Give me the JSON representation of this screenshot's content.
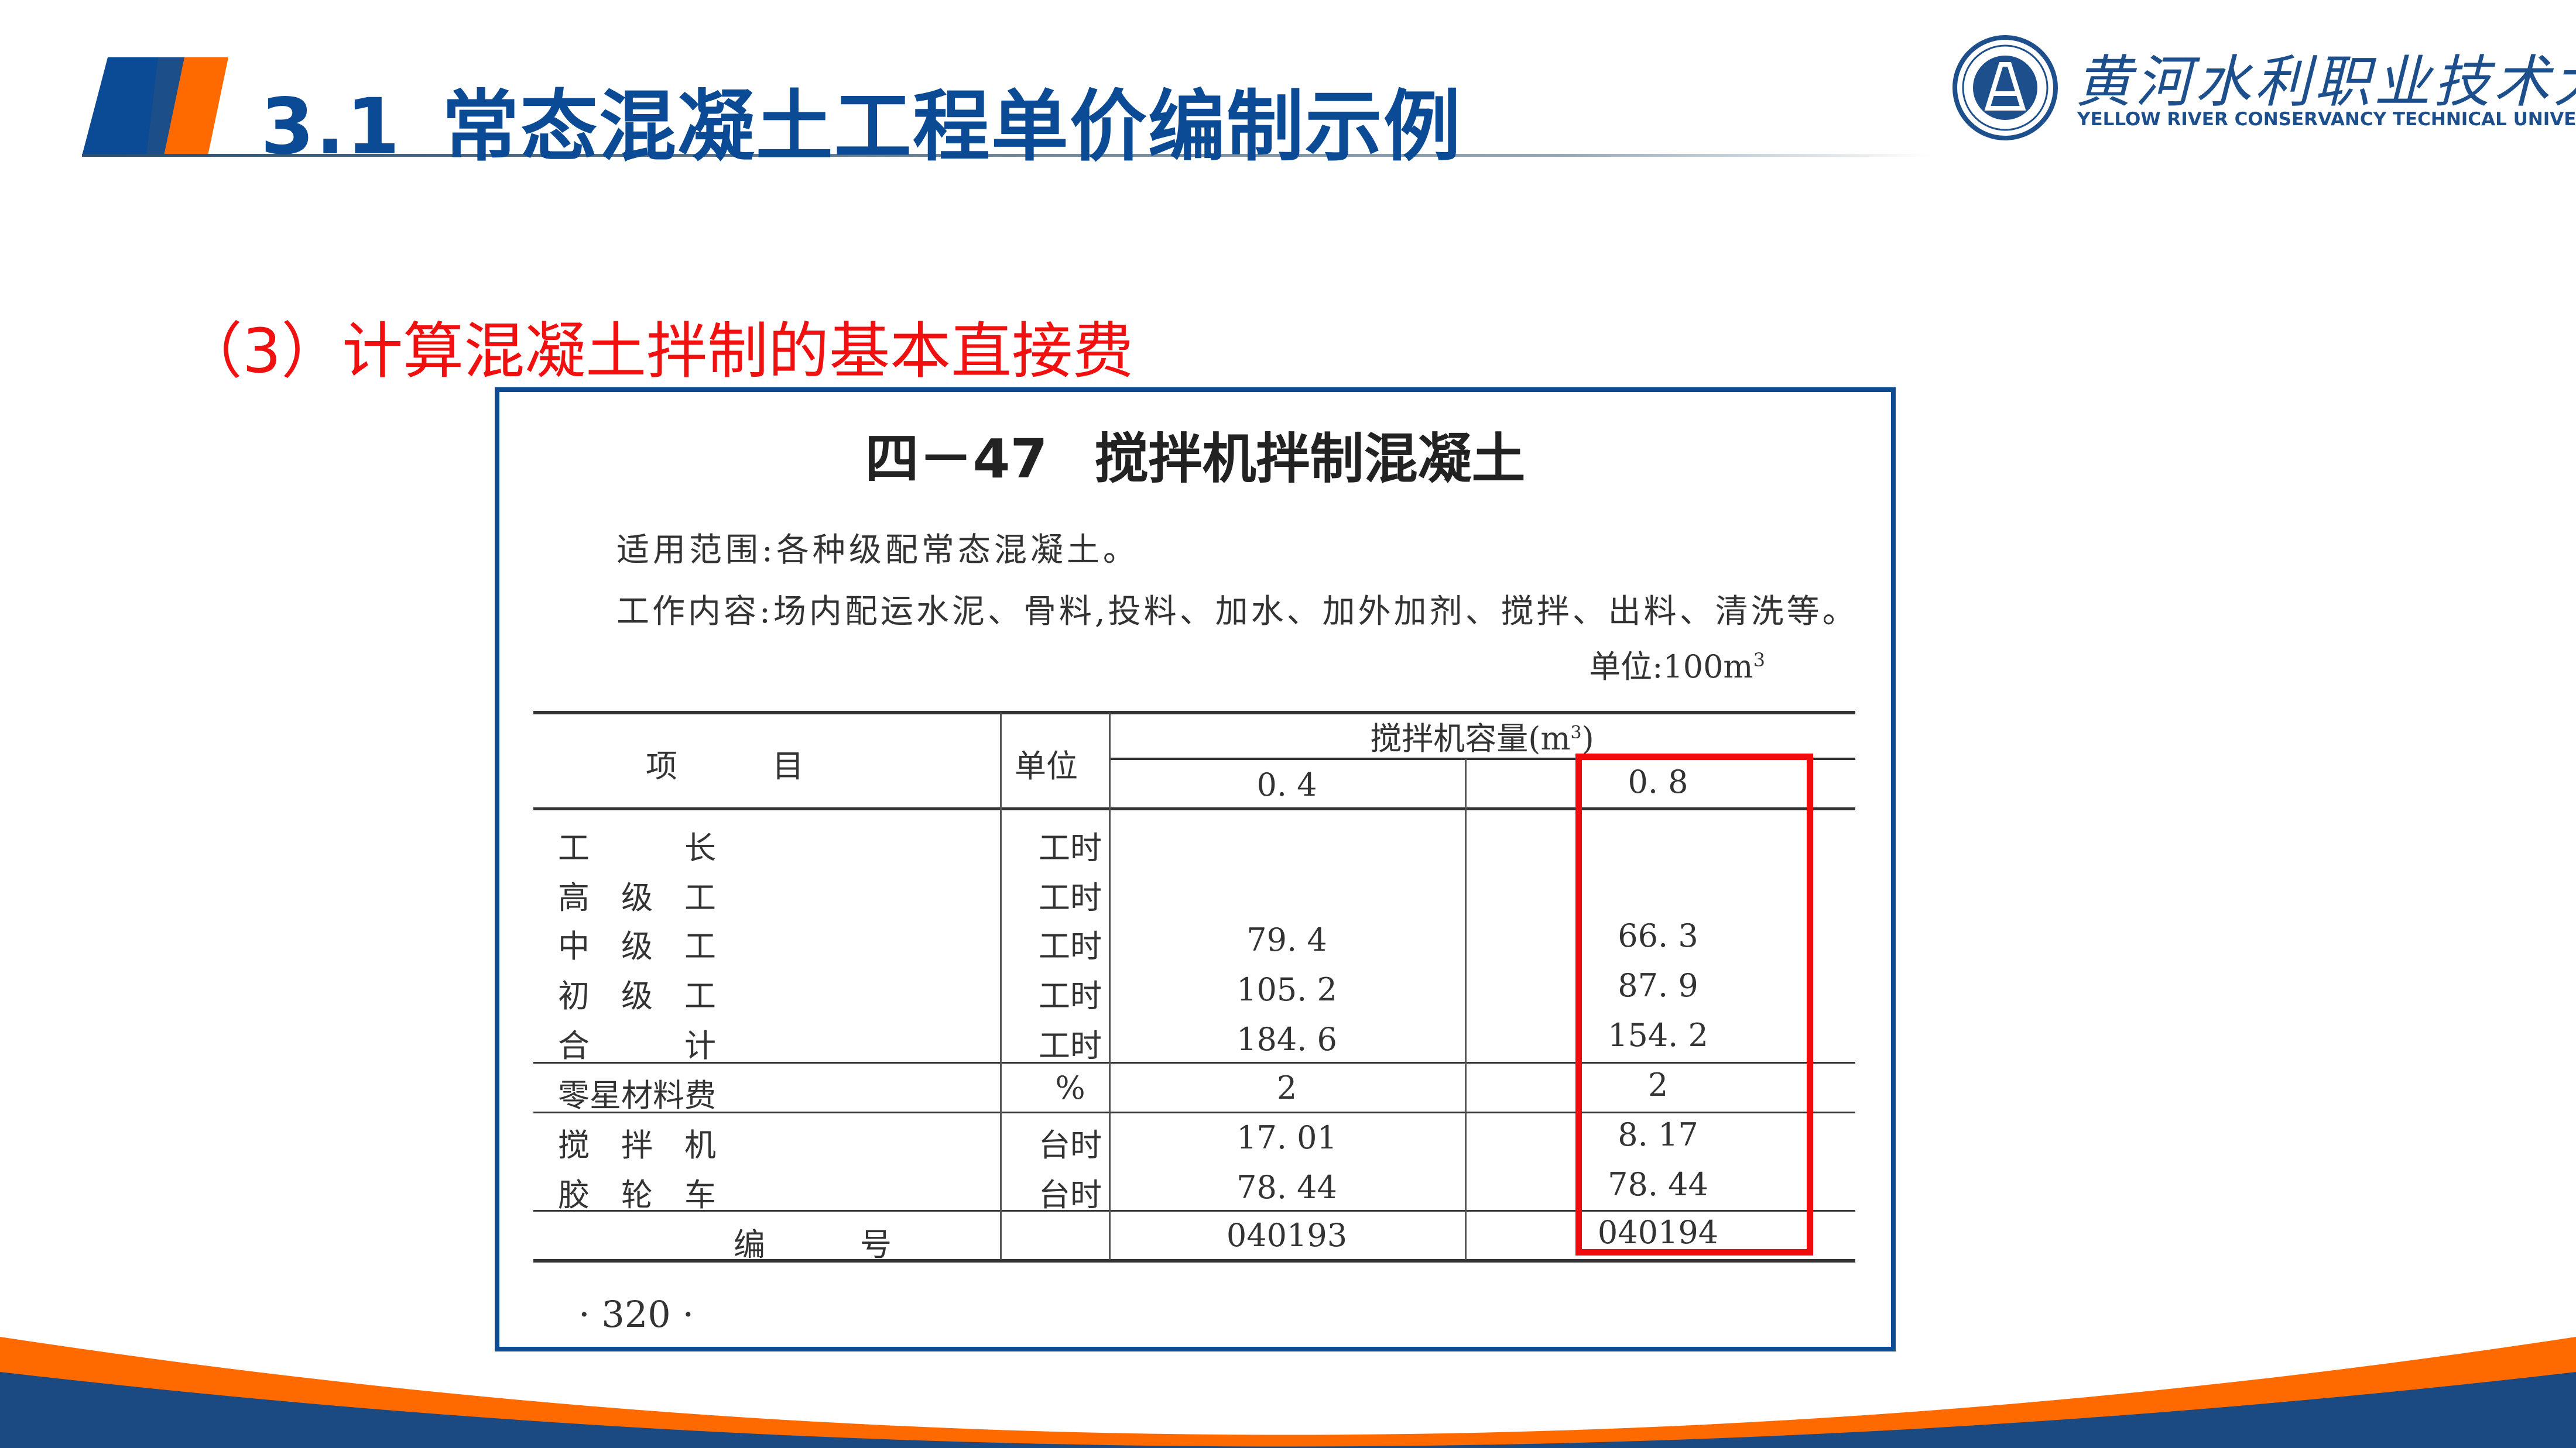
{
  "header": {
    "section_number": "3.1",
    "title": "常态混凝土工程单价编制示例",
    "colors": {
      "blue": "#0b4a94",
      "orange": "#ff6a00"
    }
  },
  "logo": {
    "name_cn": "黄河水利职业技术大学",
    "name_en": "YELLOW RIVER CONSERVANCY TECHNICAL UNIVERSITY"
  },
  "subtitle": "（3）计算混凝土拌制的基本直接费",
  "document": {
    "table_number": "四－47",
    "table_title": "搅拌机拌制混凝土",
    "scope": "适用范围:各种级配常态混凝土。",
    "work_content": "工作内容:场内配运水泥、骨料,投料、加水、加外加剂、搅拌、出料、清洗等。",
    "unit_label": "单位:100m",
    "unit_sup": "3",
    "columns": {
      "item": "项　　　目",
      "unit": "单位",
      "capacity": "搅拌机容量(m",
      "capacity_sup": "3",
      "capacity_close": ")",
      "sizes": [
        "0. 4",
        "0. 8"
      ]
    },
    "rows": [
      {
        "item": "工　　　长",
        "unit": "工时",
        "v1": "",
        "v2": ""
      },
      {
        "item": "高　级　工",
        "unit": "工时",
        "v1": "",
        "v2": ""
      },
      {
        "item": "中　级　工",
        "unit": "工时",
        "v1": "79. 4",
        "v2": "66. 3"
      },
      {
        "item": "初　级　工",
        "unit": "工时",
        "v1": "105. 2",
        "v2": "87. 9"
      },
      {
        "item": "合　　　计",
        "unit": "工时",
        "v1": "184. 6",
        "v2": "154. 2"
      },
      {
        "item": "零星材料费",
        "unit": "%",
        "v1": "2",
        "v2": "2"
      },
      {
        "item": "搅　拌　机",
        "unit": "台时",
        "v1": "17. 01",
        "v2": "8. 17"
      },
      {
        "item": "胶　轮　车",
        "unit": "台时",
        "v1": "78. 44",
        "v2": "78. 44"
      }
    ],
    "code_label": "编　　　号",
    "codes": [
      "040193",
      "040194"
    ],
    "page_number": "· 320 ·",
    "highlight_color": "#f00c0c"
  }
}
